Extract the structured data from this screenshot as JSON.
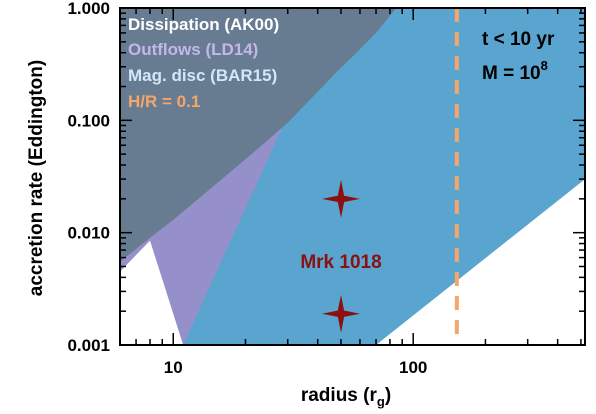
{
  "chart_data": {
    "type": "area",
    "xlabel_main": "radius (r",
    "xlabel_sub": "g",
    "xlabel_close": ")",
    "ylabel": "accretion rate (Eddington)",
    "xscale": "log",
    "yscale": "log",
    "xlim": [
      6,
      520
    ],
    "ylim": [
      0.001,
      1.0
    ],
    "x_ticks": [
      {
        "value": 10,
        "label": "10"
      },
      {
        "value": 100,
        "label": "100"
      }
    ],
    "y_ticks": [
      {
        "value": 0.001,
        "label": "0.001"
      },
      {
        "value": 0.01,
        "label": "0.010"
      },
      {
        "value": 0.1,
        "label": "0.100"
      },
      {
        "value": 1.0,
        "label": "1.000"
      }
    ],
    "regions": [
      {
        "name": "Mag. disc (BAR15)",
        "color": "#5aa5cf",
        "upper": [
          [
            6,
            1.0
          ],
          [
            520,
            1.0
          ]
        ],
        "lower": [
          [
            11,
            0.001
          ],
          [
            70,
            0.001
          ],
          [
            520,
            0.03
          ]
        ]
      },
      {
        "name": "Outflows (LD14)",
        "color": "#958fca",
        "upper": [
          [
            6,
            1.0
          ],
          [
            48,
            1.0
          ]
        ],
        "lower": [
          [
            6,
            0.0045
          ],
          [
            8,
            0.0085
          ],
          [
            11,
            0.001
          ]
        ]
      },
      {
        "name": "Dissipation (AK00)",
        "color": "#687c91",
        "upper": [
          [
            6,
            1.0
          ],
          [
            85,
            1.0
          ]
        ],
        "lower": [
          [
            6,
            0.0055
          ],
          [
            8,
            0.009
          ],
          [
            10,
            0.013
          ],
          [
            12,
            0.018
          ],
          [
            20,
            0.045
          ],
          [
            30,
            0.095
          ],
          [
            40,
            0.18
          ],
          [
            48,
            0.27
          ],
          [
            58,
            0.4
          ],
          [
            70,
            0.6
          ],
          [
            85,
            1.0
          ]
        ]
      }
    ],
    "vline": {
      "x": 152,
      "color": "#f5a66a",
      "style": "dashed",
      "label": "H/R = 0.1"
    },
    "points": [
      {
        "x": 50,
        "y": 0.02
      },
      {
        "x": 50,
        "y": 0.0019
      }
    ],
    "point_color": "#8b1010",
    "point_label": "Mrk 1018",
    "point_label_pos": {
      "x": 50,
      "y": 0.0055
    },
    "legend": {
      "placement": "top-left",
      "entries": [
        {
          "label": "Dissipation (AK00)",
          "color": "#ffffff"
        },
        {
          "label": "Outflows (LD14)",
          "color": "#c4b6ec"
        },
        {
          "label": "Mag. disc (BAR15)",
          "color": "#cfe9f6"
        },
        {
          "label": "H/R = 0.1",
          "color": "#f5a66a"
        }
      ]
    },
    "annotation": {
      "placement": "top-right",
      "line1": "t < 10 yr",
      "line2_prefix": "M = 10",
      "line2_exp": "8",
      "color": "#000000"
    }
  }
}
